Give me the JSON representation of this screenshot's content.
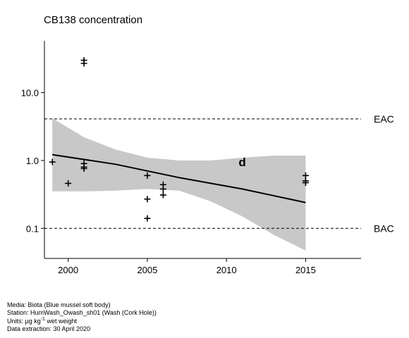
{
  "chart_data": {
    "type": "scatter",
    "title": "CB138 concentration",
    "xlabel": "",
    "ylabel": "",
    "y_scale": "log",
    "xlim": [
      1998.5,
      2018.5
    ],
    "ylim": [
      0.036,
      58
    ],
    "x_ticks": [
      2000,
      2005,
      2010,
      2015
    ],
    "x_tick_labels": [
      "2000",
      "2005",
      "2010",
      "2015"
    ],
    "y_ticks": [
      0.1,
      1.0,
      10.0
    ],
    "y_tick_labels": [
      "0.1",
      "1.0",
      "10.0"
    ],
    "grid": false,
    "points": [
      {
        "x": 1999,
        "y": 0.95
      },
      {
        "x": 2000,
        "y": 0.46
      },
      {
        "x": 2001,
        "y": 30
      },
      {
        "x": 2001,
        "y": 27
      },
      {
        "x": 2001,
        "y": 0.9
      },
      {
        "x": 2001,
        "y": 0.8
      },
      {
        "x": 2001,
        "y": 0.76
      },
      {
        "x": 2005,
        "y": 0.6
      },
      {
        "x": 2005,
        "y": 0.27
      },
      {
        "x": 2005,
        "y": 0.14
      },
      {
        "x": 2006,
        "y": 0.44
      },
      {
        "x": 2006,
        "y": 0.38
      },
      {
        "x": 2006,
        "y": 0.31
      },
      {
        "x": 2015,
        "y": 0.6
      },
      {
        "x": 2015,
        "y": 0.5
      },
      {
        "x": 2015,
        "y": 0.47
      }
    ],
    "point_marker": "+",
    "annotations": [
      {
        "x": 2011,
        "y": 0.95,
        "label": "d"
      }
    ],
    "trend": {
      "x": [
        1999,
        2003,
        2007,
        2011,
        2015
      ],
      "y": [
        1.22,
        0.88,
        0.56,
        0.38,
        0.24
      ],
      "color": "#000000"
    },
    "confidence_band": {
      "x": [
        1999,
        2001,
        2003,
        2005,
        2007,
        2009,
        2011,
        2013,
        2015
      ],
      "upper": [
        4.2,
        2.2,
        1.45,
        1.1,
        1.0,
        1.0,
        1.1,
        1.18,
        1.18
      ],
      "lower": [
        0.35,
        0.35,
        0.36,
        0.38,
        0.36,
        0.25,
        0.15,
        0.08,
        0.047
      ],
      "color": "#c8c8c8"
    },
    "reference_lines": [
      {
        "label": "EAC",
        "y": 4.1
      },
      {
        "label": "BAC",
        "y": 0.1
      }
    ]
  },
  "footer": {
    "media": "Media: Biota (Blue mussel soft body)",
    "station": "Station: HumWash_Owash_sh01 (Wash (Cork Hole))",
    "units_prefix": "Units: ",
    "units_value": "µg kg",
    "units_exp": "-1",
    "units_suffix": " wet weight",
    "extraction": "Data extraction: 30 April 2020"
  }
}
